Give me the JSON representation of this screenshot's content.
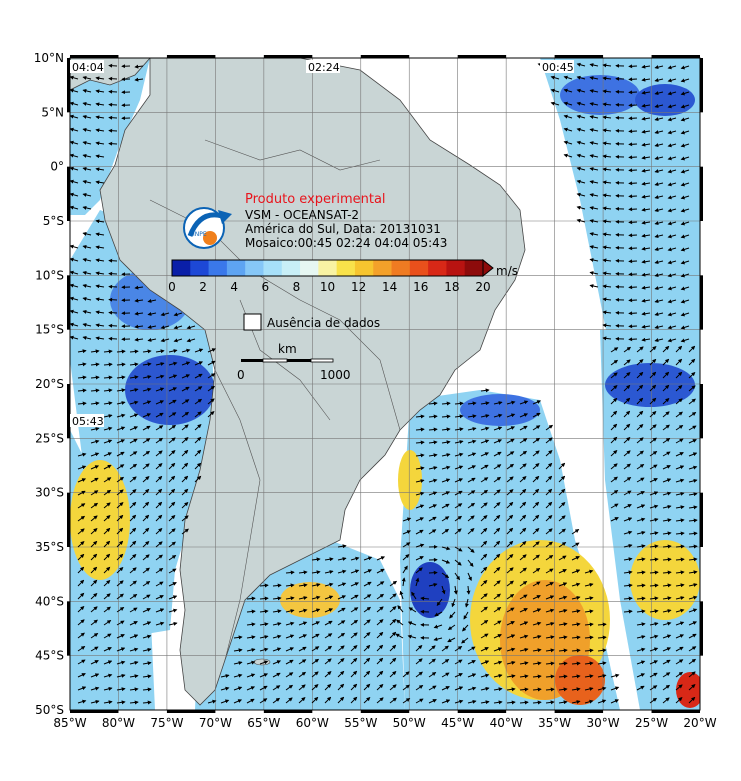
{
  "map": {
    "time_tags": [
      "04:04",
      "02:24",
      "00:45",
      "05:43"
    ],
    "lat_labels": [
      "10°N",
      "5°N",
      "0°",
      "5°S",
      "10°S",
      "15°S",
      "20°S",
      "25°S",
      "30°S",
      "35°S",
      "40°S",
      "45°S",
      "50°S"
    ],
    "lon_labels": [
      "85°W",
      "80°W",
      "75°W",
      "70°W",
      "65°W",
      "60°W",
      "55°W",
      "50°W",
      "45°W",
      "40°W",
      "35°W",
      "30°W",
      "25°W",
      "20°W"
    ],
    "colors": {
      "land": "#c9d5d5",
      "border": "#555555",
      "nodata": "#ffffff",
      "grid": "#777777"
    }
  },
  "legend": {
    "title": "Produto experimental",
    "line1": "VSM - OCEANSAT-2",
    "line2": "América do Sul, Data: 20131031",
    "line3": "Mosaico:00:45 02:24 04:04 05:43",
    "logo_text": "INPE",
    "unit": "m/s",
    "ticks": [
      "0",
      "2",
      "4",
      "6",
      "8",
      "10",
      "12",
      "14",
      "16",
      "18",
      "20"
    ],
    "colors": [
      "#0a1fa8",
      "#1d48d6",
      "#3a78ea",
      "#5ea4f2",
      "#86c7f7",
      "#a7e0f9",
      "#c8eff7",
      "#e6f7f2",
      "#f8f3a3",
      "#f8e24a",
      "#f6c52f",
      "#f3a12a",
      "#ef7b22",
      "#e9501c",
      "#d82817",
      "#b81311",
      "#8d0b0b"
    ],
    "no_data_label": "Ausência de dados",
    "scalebar_unit": "km",
    "scalebar_start": "0",
    "scalebar_end": "1000"
  }
}
